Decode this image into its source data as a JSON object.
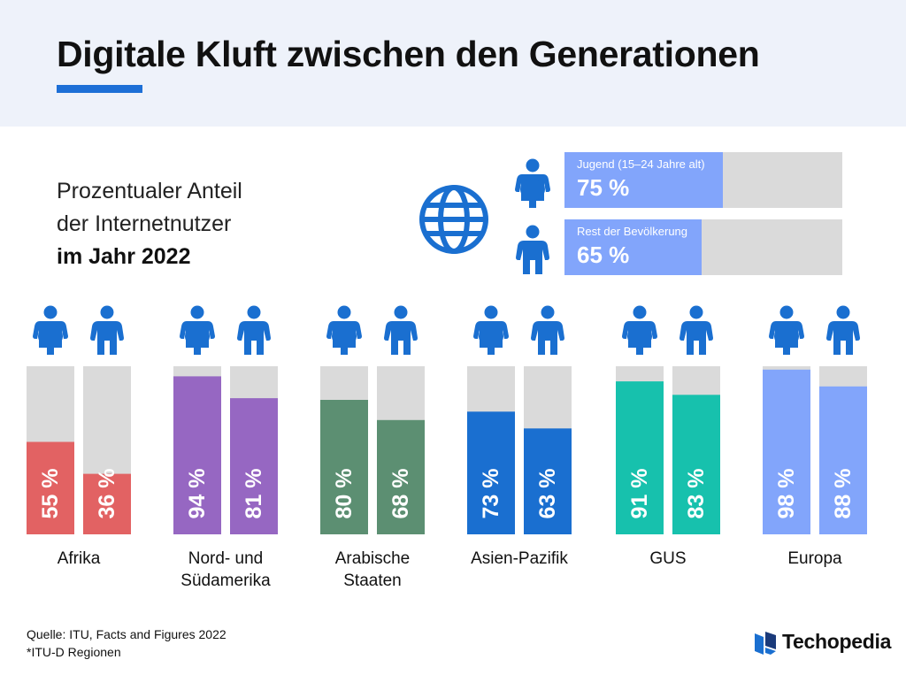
{
  "title": "Digitale Kluft zwischen den Generationen",
  "subtitle": {
    "line1": "Prozentualer Anteil",
    "line2": "der Internetnutzer",
    "line3": "im Jahr 2022"
  },
  "legend": [
    {
      "label": "Jugend (15–24 Jahre alt)",
      "value_text": "75 %",
      "value": 75
    },
    {
      "label": "Rest der Bevölkerung",
      "value_text": "65 %",
      "value": 65
    }
  ],
  "chart_data": {
    "type": "bar",
    "title": "Prozentualer Anteil der Internetnutzer im Jahr 2022",
    "ylim": [
      0,
      100
    ],
    "categories": [
      "Afrika",
      "Nord- und Südamerika",
      "Arabische Staaten",
      "Asien-Pazifik",
      "GUS",
      "Europa"
    ],
    "category_lines": [
      [
        "Afrika"
      ],
      [
        "Nord- und",
        "Südamerika"
      ],
      [
        "Arabische",
        "Staaten"
      ],
      [
        "Asien-Pazifik"
      ],
      [
        "GUS"
      ],
      [
        "Europa"
      ]
    ],
    "series": [
      {
        "name": "Jugend (15–24 Jahre alt)",
        "values": [
          55,
          94,
          80,
          73,
          91,
          98
        ]
      },
      {
        "name": "Rest der Bevölkerung",
        "values": [
          36,
          81,
          68,
          63,
          83,
          88
        ]
      }
    ],
    "value_labels": [
      [
        "55 %",
        "36 %"
      ],
      [
        "94 %",
        "81 %"
      ],
      [
        "80 %",
        "68 %"
      ],
      [
        "73 %",
        "63 %"
      ],
      [
        "91 %",
        "83 %"
      ],
      [
        "98 %",
        "88 %"
      ]
    ],
    "colors": [
      "#e26263",
      "#9667c2",
      "#5c8f72",
      "#1a6fd0",
      "#17c1ad",
      "#82a5fb"
    ]
  },
  "colors": {
    "person_icon": "#1a6fd0",
    "remainder": "#dadada",
    "title_accent": "#1d6fd6",
    "header_bg": "#eef2fa"
  },
  "source": {
    "line1": "Quelle: ITU, Facts and Figures 2022",
    "line2": "*ITU-D Regionen"
  },
  "brand": "Techopedia"
}
